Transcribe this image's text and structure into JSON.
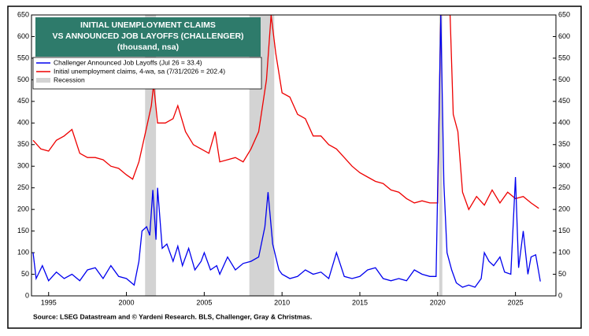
{
  "chart_data": {
    "type": "line",
    "title": [
      "INITIAL UNEMPLOYMENT CLAIMS",
      "VS ANNOUNCED JOB LAYOFFS (CHALLENGER)"
    ],
    "subtitle": "(thousand, nsa)",
    "source": "Source: LSEG Datastream and © Yardeni Research. BLS, Challenger, Gray & Christmas.",
    "xlim": [
      1993.9,
      2027.6
    ],
    "xticks": [
      1995,
      2000,
      2005,
      2010,
      2015,
      2020,
      2025
    ],
    "ylim": [
      0,
      650
    ],
    "yticks": [
      0,
      50,
      100,
      150,
      200,
      250,
      300,
      350,
      400,
      450,
      500,
      550,
      600,
      650
    ],
    "y2lim": [
      0,
      650
    ],
    "y2ticks": [
      0,
      50,
      100,
      150,
      200,
      250,
      300,
      350,
      400,
      450,
      500,
      550,
      600,
      650
    ],
    "recession_label": "Recession",
    "recession_color": "#d3d3d3",
    "recessions": [
      [
        2001.2,
        2001.9
      ],
      [
        2007.9,
        2009.5
      ],
      [
        2020.1,
        2020.3
      ]
    ],
    "series": [
      {
        "name": "Challenger Announced Job Layoffs (Jul 26 = 33.4)",
        "color": "#0000ee",
        "x": [
          1994,
          1994.2,
          1994.6,
          1995,
          1995.5,
          1996,
          1996.5,
          1997,
          1997.5,
          1998,
          1998.5,
          1999,
          1999.5,
          2000,
          2000.5,
          2000.8,
          2001,
          2001.3,
          2001.5,
          2001.7,
          2001.9,
          2002,
          2002.3,
          2002.6,
          2003,
          2003.3,
          2003.6,
          2004,
          2004.4,
          2004.8,
          2005,
          2005.4,
          2005.8,
          2006,
          2006.5,
          2007,
          2007.5,
          2008,
          2008.5,
          2008.9,
          2009.1,
          2009.4,
          2009.8,
          2010,
          2010.5,
          2011,
          2011.5,
          2012,
          2012.5,
          2013,
          2013.5,
          2014,
          2014.5,
          2015,
          2015.5,
          2016,
          2016.5,
          2017,
          2017.5,
          2018,
          2018.5,
          2019,
          2019.5,
          2019.9,
          2020.2,
          2020.4,
          2020.6,
          2020.9,
          2021.2,
          2021.6,
          2022,
          2022.4,
          2022.8,
          2023,
          2023.3,
          2023.6,
          2024,
          2024.3,
          2024.7,
          2025,
          2025.2,
          2025.5,
          2025.8,
          2026,
          2026.3,
          2026.6
        ],
        "values": [
          100,
          40,
          70,
          35,
          55,
          40,
          50,
          35,
          60,
          65,
          40,
          70,
          45,
          40,
          25,
          80,
          150,
          160,
          140,
          245,
          130,
          250,
          110,
          120,
          80,
          115,
          70,
          110,
          60,
          80,
          100,
          60,
          70,
          50,
          90,
          60,
          75,
          80,
          90,
          160,
          240,
          120,
          60,
          50,
          40,
          45,
          60,
          50,
          55,
          40,
          100,
          45,
          40,
          45,
          60,
          65,
          40,
          35,
          40,
          35,
          60,
          50,
          45,
          45,
          650,
          260,
          100,
          60,
          30,
          20,
          25,
          20,
          40,
          100,
          80,
          70,
          90,
          55,
          50,
          275,
          65,
          150,
          50,
          90,
          95,
          33.4
        ]
      },
      {
        "name": "Initial unemployment claims, 4-wa, sa (7/31/2026 = 202.4)",
        "color": "#ee0000",
        "x": [
          1994,
          1994.5,
          1995,
          1995.5,
          1996,
          1996.5,
          1997,
          1997.5,
          1998,
          1998.5,
          1999,
          1999.5,
          2000,
          2000.4,
          2000.8,
          2001.3,
          2001.6,
          2001.75,
          2002,
          2002.5,
          2003,
          2003.3,
          2003.8,
          2004.3,
          2004.8,
          2005.3,
          2005.7,
          2006,
          2006.5,
          2007,
          2007.5,
          2008,
          2008.5,
          2009,
          2009.3,
          2009.6,
          2010,
          2010.5,
          2011,
          2011.5,
          2012,
          2012.5,
          2013,
          2013.5,
          2014,
          2014.5,
          2015,
          2015.5,
          2016,
          2016.5,
          2017,
          2017.5,
          2018,
          2018.5,
          2019,
          2019.5,
          2020,
          2020.2,
          2020.8,
          2021,
          2021.3,
          2021.6,
          2022,
          2022.5,
          2023,
          2023.5,
          2024,
          2024.5,
          2025,
          2025.5,
          2026,
          2026.5
        ],
        "values": [
          360,
          340,
          335,
          360,
          370,
          385,
          330,
          320,
          320,
          315,
          300,
          295,
          280,
          270,
          310,
          390,
          440,
          490,
          400,
          400,
          410,
          440,
          380,
          350,
          340,
          330,
          380,
          310,
          315,
          320,
          310,
          340,
          380,
          500,
          650,
          560,
          470,
          460,
          420,
          410,
          370,
          370,
          350,
          340,
          320,
          300,
          285,
          275,
          265,
          260,
          245,
          240,
          225,
          215,
          220,
          215,
          215,
          650,
          650,
          420,
          380,
          240,
          200,
          230,
          210,
          245,
          215,
          240,
          225,
          230,
          215,
          202.4
        ]
      }
    ]
  }
}
